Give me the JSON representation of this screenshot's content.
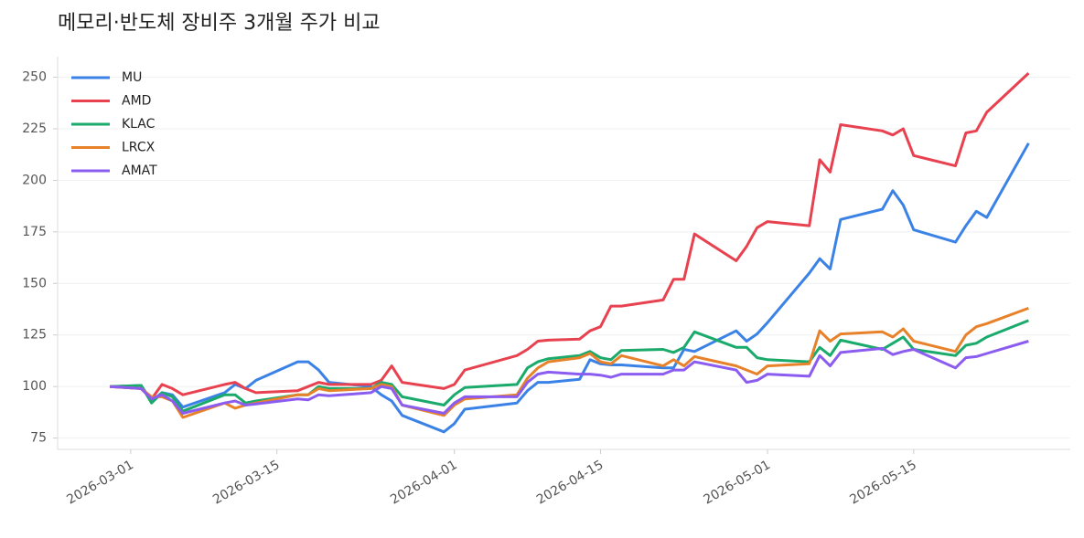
{
  "chart_data": {
    "type": "line",
    "title": "메모리·반도체 장비주 3개월 주가 비교",
    "x": [
      "2026-02-27",
      "2026-03-02",
      "2026-03-03",
      "2026-03-04",
      "2026-03-05",
      "2026-03-06",
      "2026-03-10",
      "2026-03-11",
      "2026-03-12",
      "2026-03-13",
      "2026-03-17",
      "2026-03-18",
      "2026-03-19",
      "2026-03-20",
      "2026-03-24",
      "2026-03-25",
      "2026-03-26",
      "2026-03-27",
      "2026-03-31",
      "2026-04-01",
      "2026-04-02",
      "2026-04-07",
      "2026-04-08",
      "2026-04-09",
      "2026-04-10",
      "2026-04-13",
      "2026-04-14",
      "2026-04-15",
      "2026-04-16",
      "2026-04-17",
      "2026-04-21",
      "2026-04-22",
      "2026-04-23",
      "2026-04-24",
      "2026-04-28",
      "2026-04-29",
      "2026-04-30",
      "2026-05-01",
      "2026-05-05",
      "2026-05-06",
      "2026-05-07",
      "2026-05-08",
      "2026-05-12",
      "2026-05-13",
      "2026-05-14",
      "2026-05-15",
      "2026-05-19",
      "2026-05-20",
      "2026-05-21",
      "2026-05-22",
      "2026-05-26"
    ],
    "series": [
      {
        "name": "MU",
        "color": "#3b82e6",
        "values": [
          100,
          100.5,
          93,
          97,
          96,
          90,
          97,
          101,
          99,
          103,
          112,
          112,
          108,
          102,
          100,
          96,
          93,
          86,
          78,
          82,
          89,
          92,
          98,
          102,
          102,
          103.5,
          113,
          111,
          110.5,
          110.5,
          109,
          109,
          118,
          117,
          127,
          122,
          125.5,
          131,
          155,
          162,
          157,
          181,
          186,
          195,
          188,
          176,
          170,
          178,
          185,
          182,
          218
        ]
      },
      {
        "name": "AMD",
        "color": "#e8414f",
        "values": [
          100,
          99,
          94,
          101,
          99,
          96,
          101,
          102,
          99,
          97,
          98,
          100,
          102,
          101,
          101,
          103,
          110,
          102,
          99,
          101,
          108,
          115,
          118,
          122,
          122.5,
          123,
          127,
          129,
          139,
          139,
          142,
          152,
          152,
          174,
          161,
          168,
          177,
          180,
          178,
          210,
          204,
          227,
          224,
          222,
          225,
          212,
          207,
          223,
          224,
          233,
          252
        ]
      },
      {
        "name": "KLAC",
        "color": "#1aaa6b",
        "values": [
          100,
          100.5,
          92,
          97,
          95,
          88,
          96,
          96,
          92,
          93,
          96,
          96,
          100,
          99,
          99,
          102,
          101,
          95,
          91,
          96,
          99.5,
          101,
          109,
          112,
          113.5,
          115,
          117,
          114,
          113,
          117.5,
          118,
          116.5,
          119,
          126.5,
          119,
          119,
          114,
          113,
          112,
          119,
          115,
          122.5,
          118,
          121,
          124,
          118,
          115,
          120,
          121,
          124,
          132
        ]
      },
      {
        "name": "LRCX",
        "color": "#e8822a",
        "values": [
          100,
          99,
          95,
          95,
          93,
          85,
          92,
          89.5,
          91,
          92,
          96,
          96,
          99,
          98,
          99,
          101,
          100,
          91,
          86,
          91,
          94,
          96,
          104,
          109,
          112,
          114,
          116,
          112,
          111,
          115,
          110,
          113,
          110,
          114.5,
          110,
          108,
          106,
          110,
          111,
          127,
          122,
          125.5,
          126.5,
          124,
          128,
          122,
          117,
          125,
          129,
          130.5,
          138
        ]
      },
      {
        "name": "AMAT",
        "color": "#8b5cf0",
        "values": [
          100,
          99,
          94,
          96,
          93,
          87,
          92,
          93,
          91,
          91.5,
          94,
          93.5,
          96,
          95.5,
          97,
          100,
          99,
          91,
          87,
          92,
          95,
          95,
          102,
          106,
          107,
          106,
          106,
          105.5,
          104.5,
          106,
          106,
          108,
          108,
          112,
          108,
          102,
          103,
          106,
          105,
          115,
          110,
          116.5,
          118.5,
          115.5,
          117,
          118,
          109,
          114,
          114.5,
          116,
          122
        ]
      }
    ],
    "xlim": [
      "2026-02-22",
      "2026-05-30"
    ],
    "xticks": [
      "2026-03-01",
      "2026-03-15",
      "2026-04-01",
      "2026-04-15",
      "2026-05-01",
      "2026-05-15"
    ],
    "ylim": [
      69.5,
      260
    ],
    "yticks": [
      75,
      100,
      125,
      150,
      175,
      200,
      225,
      250
    ],
    "grid": true,
    "legend": "upper left"
  }
}
